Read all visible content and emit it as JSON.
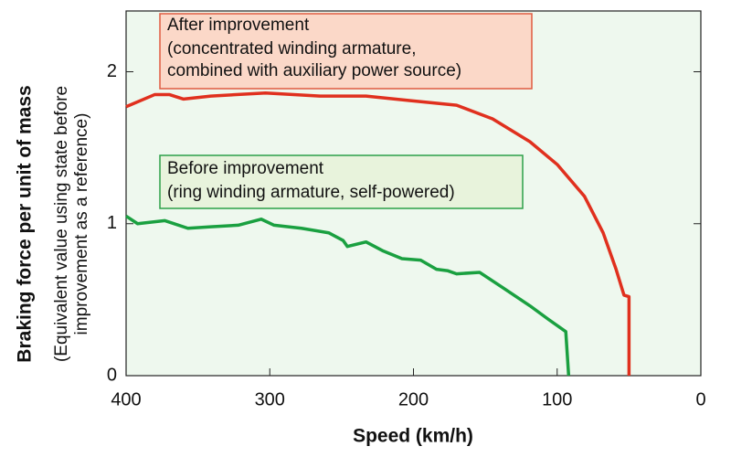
{
  "chart_data": {
    "type": "line",
    "x_label": "Speed (km/h)",
    "y_label": [
      "Braking force per unit of mass",
      "(Equivalent value using state before",
      "improvement as a reference)"
    ],
    "xlim": [
      400,
      0
    ],
    "xticks": [
      400,
      300,
      200,
      100,
      0
    ],
    "ylim": [
      0,
      2.4
    ],
    "yticks": [
      0,
      1,
      2
    ],
    "plot_background": "#eef8ee",
    "series": [
      {
        "name": "After improvement",
        "color": "#e0301e",
        "x": [
          400,
          380,
          370,
          360,
          341,
          303,
          265,
          233,
          202,
          170,
          145,
          119,
          100,
          81,
          68,
          59,
          53.5,
          50,
          50
        ],
        "values": [
          1.77,
          1.85,
          1.85,
          1.82,
          1.84,
          1.86,
          1.84,
          1.84,
          1.81,
          1.78,
          1.69,
          1.54,
          1.39,
          1.18,
          0.94,
          0.7,
          0.53,
          0.52,
          0
        ]
      },
      {
        "name": "Before improvement",
        "color": "#1aa040",
        "x": [
          400,
          392,
          373,
          357,
          341,
          322,
          306,
          297,
          278,
          259,
          249,
          246,
          233,
          221,
          208,
          195,
          184,
          176,
          170,
          154,
          138,
          119,
          106,
          94,
          92
        ],
        "values": [
          1.05,
          1.0,
          1.02,
          0.97,
          0.98,
          0.99,
          1.03,
          0.99,
          0.97,
          0.94,
          0.89,
          0.85,
          0.88,
          0.82,
          0.77,
          0.76,
          0.7,
          0.69,
          0.67,
          0.68,
          0.58,
          0.46,
          0.37,
          0.29,
          0
        ]
      }
    ],
    "annotations": [
      {
        "lines": [
          "After improvement",
          "(concentrated winding armature,",
          "combined with auxiliary power source)"
        ],
        "fill": "#fbd8c8",
        "border": "#e05a40"
      },
      {
        "lines": [
          "Before improvement",
          "(ring winding armature, self-powered)"
        ],
        "fill": "#e8f3dc",
        "border": "#2ca048"
      }
    ]
  }
}
